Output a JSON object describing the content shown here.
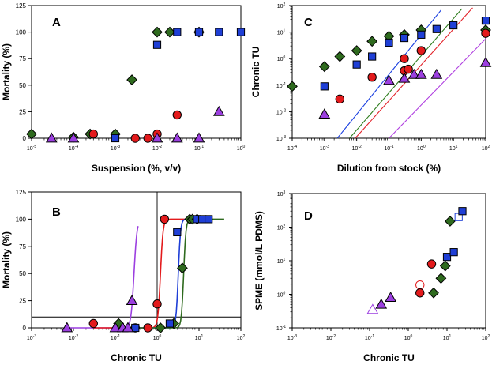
{
  "colors": {
    "green": "#2e6a1e",
    "red": "#e31a1c",
    "blue": "#1f3fd6",
    "purple": "#9c3fe0",
    "line_blue": "#1a3fe0",
    "line_green": "#2e7d1e",
    "line_red": "#e3242b",
    "line_purple": "#b040e0"
  },
  "chart_data": [
    {
      "panel": "A",
      "type": "scatter",
      "xlabel": "Suspension (%, v/v)",
      "ylabel": "Mortality (%)",
      "x_scale": "log",
      "xlim": [
        1e-05,
        1
      ],
      "ylim": [
        0,
        125
      ],
      "x_tick_exponents": [
        -5,
        -4,
        -3,
        -2,
        -1,
        0
      ],
      "y_ticks": [
        0,
        25,
        50,
        75,
        100,
        125
      ],
      "series": [
        {
          "marker": "diamond",
          "color": "green",
          "points": [
            [
              1e-05,
              4
            ],
            [
              0.0001,
              1
            ],
            [
              0.00025,
              4
            ],
            [
              0.001,
              4
            ],
            [
              0.0025,
              55
            ],
            [
              0.01,
              100
            ],
            [
              0.02,
              100
            ],
            [
              0.1,
              100
            ]
          ]
        },
        {
          "marker": "circle",
          "color": "red",
          "points": [
            [
              0.0003,
              4
            ],
            [
              0.003,
              0
            ],
            [
              0.006,
              0
            ],
            [
              0.01,
              4
            ],
            [
              0.03,
              22
            ],
            [
              0.1,
              100
            ]
          ]
        },
        {
          "marker": "square",
          "color": "blue",
          "points": [
            [
              0.001,
              0
            ],
            [
              0.01,
              88
            ],
            [
              0.03,
              100
            ],
            [
              0.1,
              100
            ],
            [
              0.3,
              100
            ],
            [
              1,
              100
            ]
          ]
        },
        {
          "marker": "triangle",
          "color": "purple",
          "points": [
            [
              3e-05,
              0
            ],
            [
              0.0001,
              0
            ],
            [
              0.01,
              0
            ],
            [
              0.03,
              0
            ],
            [
              0.1,
              0
            ],
            [
              0.3,
              25
            ]
          ]
        }
      ]
    },
    {
      "panel": "B",
      "type": "scatter",
      "xlabel": "Chronic TU",
      "ylabel": "Mortality (%)",
      "x_scale": "log",
      "xlim": [
        0.001,
        100
      ],
      "ylim": [
        0,
        125
      ],
      "x_tick_exponents": [
        -3,
        -2,
        -1,
        0,
        1,
        2
      ],
      "y_ticks": [
        0,
        25,
        50,
        75,
        100,
        125
      ],
      "reference_lines": {
        "x": 1,
        "y": 10
      },
      "curves": [
        {
          "color": "purple",
          "ec50": 0.28,
          "slope": 12,
          "x_start": 0.007,
          "x_end": 0.35
        },
        {
          "color": "red",
          "ec50": 1.2,
          "slope": 14,
          "x_start": 0.03,
          "x_end": 6
        },
        {
          "color": "blue",
          "ec50": 3.2,
          "slope": 16,
          "x_start": 0.1,
          "x_end": 20
        },
        {
          "color": "green",
          "ec50": 4.3,
          "slope": 16,
          "x_start": 0.1,
          "x_end": 40
        }
      ],
      "series": [
        {
          "marker": "diamond",
          "color": "green",
          "points": [
            [
              0.12,
              4
            ],
            [
              1.2,
              0
            ],
            [
              2.5,
              4
            ],
            [
              4,
              55
            ],
            [
              6,
              100
            ],
            [
              7,
              100
            ],
            [
              9,
              100
            ]
          ]
        },
        {
          "marker": "circle",
          "color": "red",
          "points": [
            [
              0.03,
              4
            ],
            [
              0.3,
              0
            ],
            [
              0.6,
              0
            ],
            [
              1,
              22
            ],
            [
              1.5,
              100
            ]
          ]
        },
        {
          "marker": "square",
          "color": "blue",
          "points": [
            [
              0.3,
              0
            ],
            [
              2,
              4
            ],
            [
              3,
              88
            ],
            [
              9,
              100
            ],
            [
              12,
              100
            ],
            [
              17,
              100
            ]
          ]
        },
        {
          "marker": "triangle",
          "color": "purple",
          "points": [
            [
              0.007,
              0
            ],
            [
              0.1,
              0
            ],
            [
              0.15,
              0
            ],
            [
              0.2,
              0
            ],
            [
              0.25,
              25
            ]
          ]
        }
      ]
    },
    {
      "panel": "C",
      "type": "scatter",
      "xlabel": "Dilution from stock (%)",
      "ylabel": "Chronic TU",
      "x_scale": "log",
      "y_scale": "log",
      "xlim": [
        0.0001,
        100
      ],
      "ylim": [
        0.001,
        100
      ],
      "x_tick_exponents": [
        -4,
        -3,
        -2,
        -1,
        0,
        1,
        2
      ],
      "y_tick_exponents": [
        -3,
        -2,
        -1,
        0,
        1,
        2
      ],
      "lines": [
        {
          "color": "line_blue",
          "x_start": 0.0025,
          "x_end": 100,
          "slope": 1.5
        },
        {
          "color": "line_green",
          "x_start": 0.006,
          "x_end": 100,
          "slope": 1.4
        },
        {
          "color": "line_red",
          "x_start": 0.009,
          "x_end": 100,
          "slope": 1.35
        },
        {
          "color": "line_purple",
          "x_start": 0.1,
          "x_end": 100,
          "slope": 1.25
        }
      ],
      "series": [
        {
          "marker": "diamond",
          "color": "green",
          "points": [
            [
              0.0001,
              0.09
            ],
            [
              0.001,
              0.5
            ],
            [
              0.003,
              1.2
            ],
            [
              0.01,
              2
            ],
            [
              0.03,
              4.5
            ],
            [
              0.1,
              7
            ],
            [
              0.3,
              8
            ],
            [
              1,
              12
            ],
            [
              100,
              12
            ]
          ]
        },
        {
          "marker": "circle",
          "color": "red",
          "points": [
            [
              0.003,
              0.03
            ],
            [
              0.03,
              0.2
            ],
            [
              0.3,
              0.35
            ],
            [
              0.3,
              1
            ],
            [
              0.4,
              0.4
            ],
            [
              1,
              2
            ],
            [
              100,
              9
            ]
          ]
        },
        {
          "marker": "square",
          "color": "blue",
          "points": [
            [
              0.001,
              0.09
            ],
            [
              0.01,
              0.6
            ],
            [
              0.03,
              1.2
            ],
            [
              0.1,
              4
            ],
            [
              0.3,
              6
            ],
            [
              1,
              8
            ],
            [
              3,
              13
            ],
            [
              10,
              18
            ],
            [
              100,
              27
            ]
          ]
        },
        {
          "marker": "triangle",
          "color": "purple",
          "points": [
            [
              0.001,
              0.008
            ],
            [
              0.1,
              0.15
            ],
            [
              0.3,
              0.18
            ],
            [
              0.6,
              0.25
            ],
            [
              1,
              0.25
            ],
            [
              3,
              0.25
            ],
            [
              100,
              0.7
            ]
          ]
        }
      ]
    },
    {
      "panel": "D",
      "type": "scatter",
      "xlabel": "Chronic TU",
      "ylabel": "SPME (mmol/L PDMS)",
      "x_scale": "log",
      "y_scale": "log",
      "xlim": [
        0.001,
        100
      ],
      "ylim": [
        0.1,
        1000
      ],
      "x_tick_exponents": [
        -3,
        -2,
        -1,
        0,
        1,
        2
      ],
      "y_tick_exponents": [
        -1,
        0,
        1,
        2,
        3
      ],
      "series": [
        {
          "marker": "triangle",
          "color": "purple",
          "filled": false,
          "points": [
            [
              0.12,
              0.35
            ]
          ]
        },
        {
          "marker": "triangle",
          "color": "purple",
          "points": [
            [
              0.2,
              0.5
            ],
            [
              0.35,
              0.8
            ]
          ]
        },
        {
          "marker": "circle",
          "color": "red",
          "filled": false,
          "points": [
            [
              2,
              1.9
            ]
          ]
        },
        {
          "marker": "circle",
          "color": "red",
          "points": [
            [
              2,
              1.1
            ],
            [
              4,
              8
            ]
          ]
        },
        {
          "marker": "diamond",
          "color": "green",
          "points": [
            [
              4.5,
              1.1
            ],
            [
              7,
              3
            ],
            [
              9,
              7
            ],
            [
              12,
              150
            ]
          ]
        },
        {
          "marker": "square",
          "color": "blue",
          "filled": false,
          "points": [
            [
              20,
              200
            ]
          ]
        },
        {
          "marker": "square",
          "color": "blue",
          "points": [
            [
              10,
              13
            ],
            [
              15,
              18
            ],
            [
              25,
              300
            ]
          ]
        }
      ]
    }
  ]
}
